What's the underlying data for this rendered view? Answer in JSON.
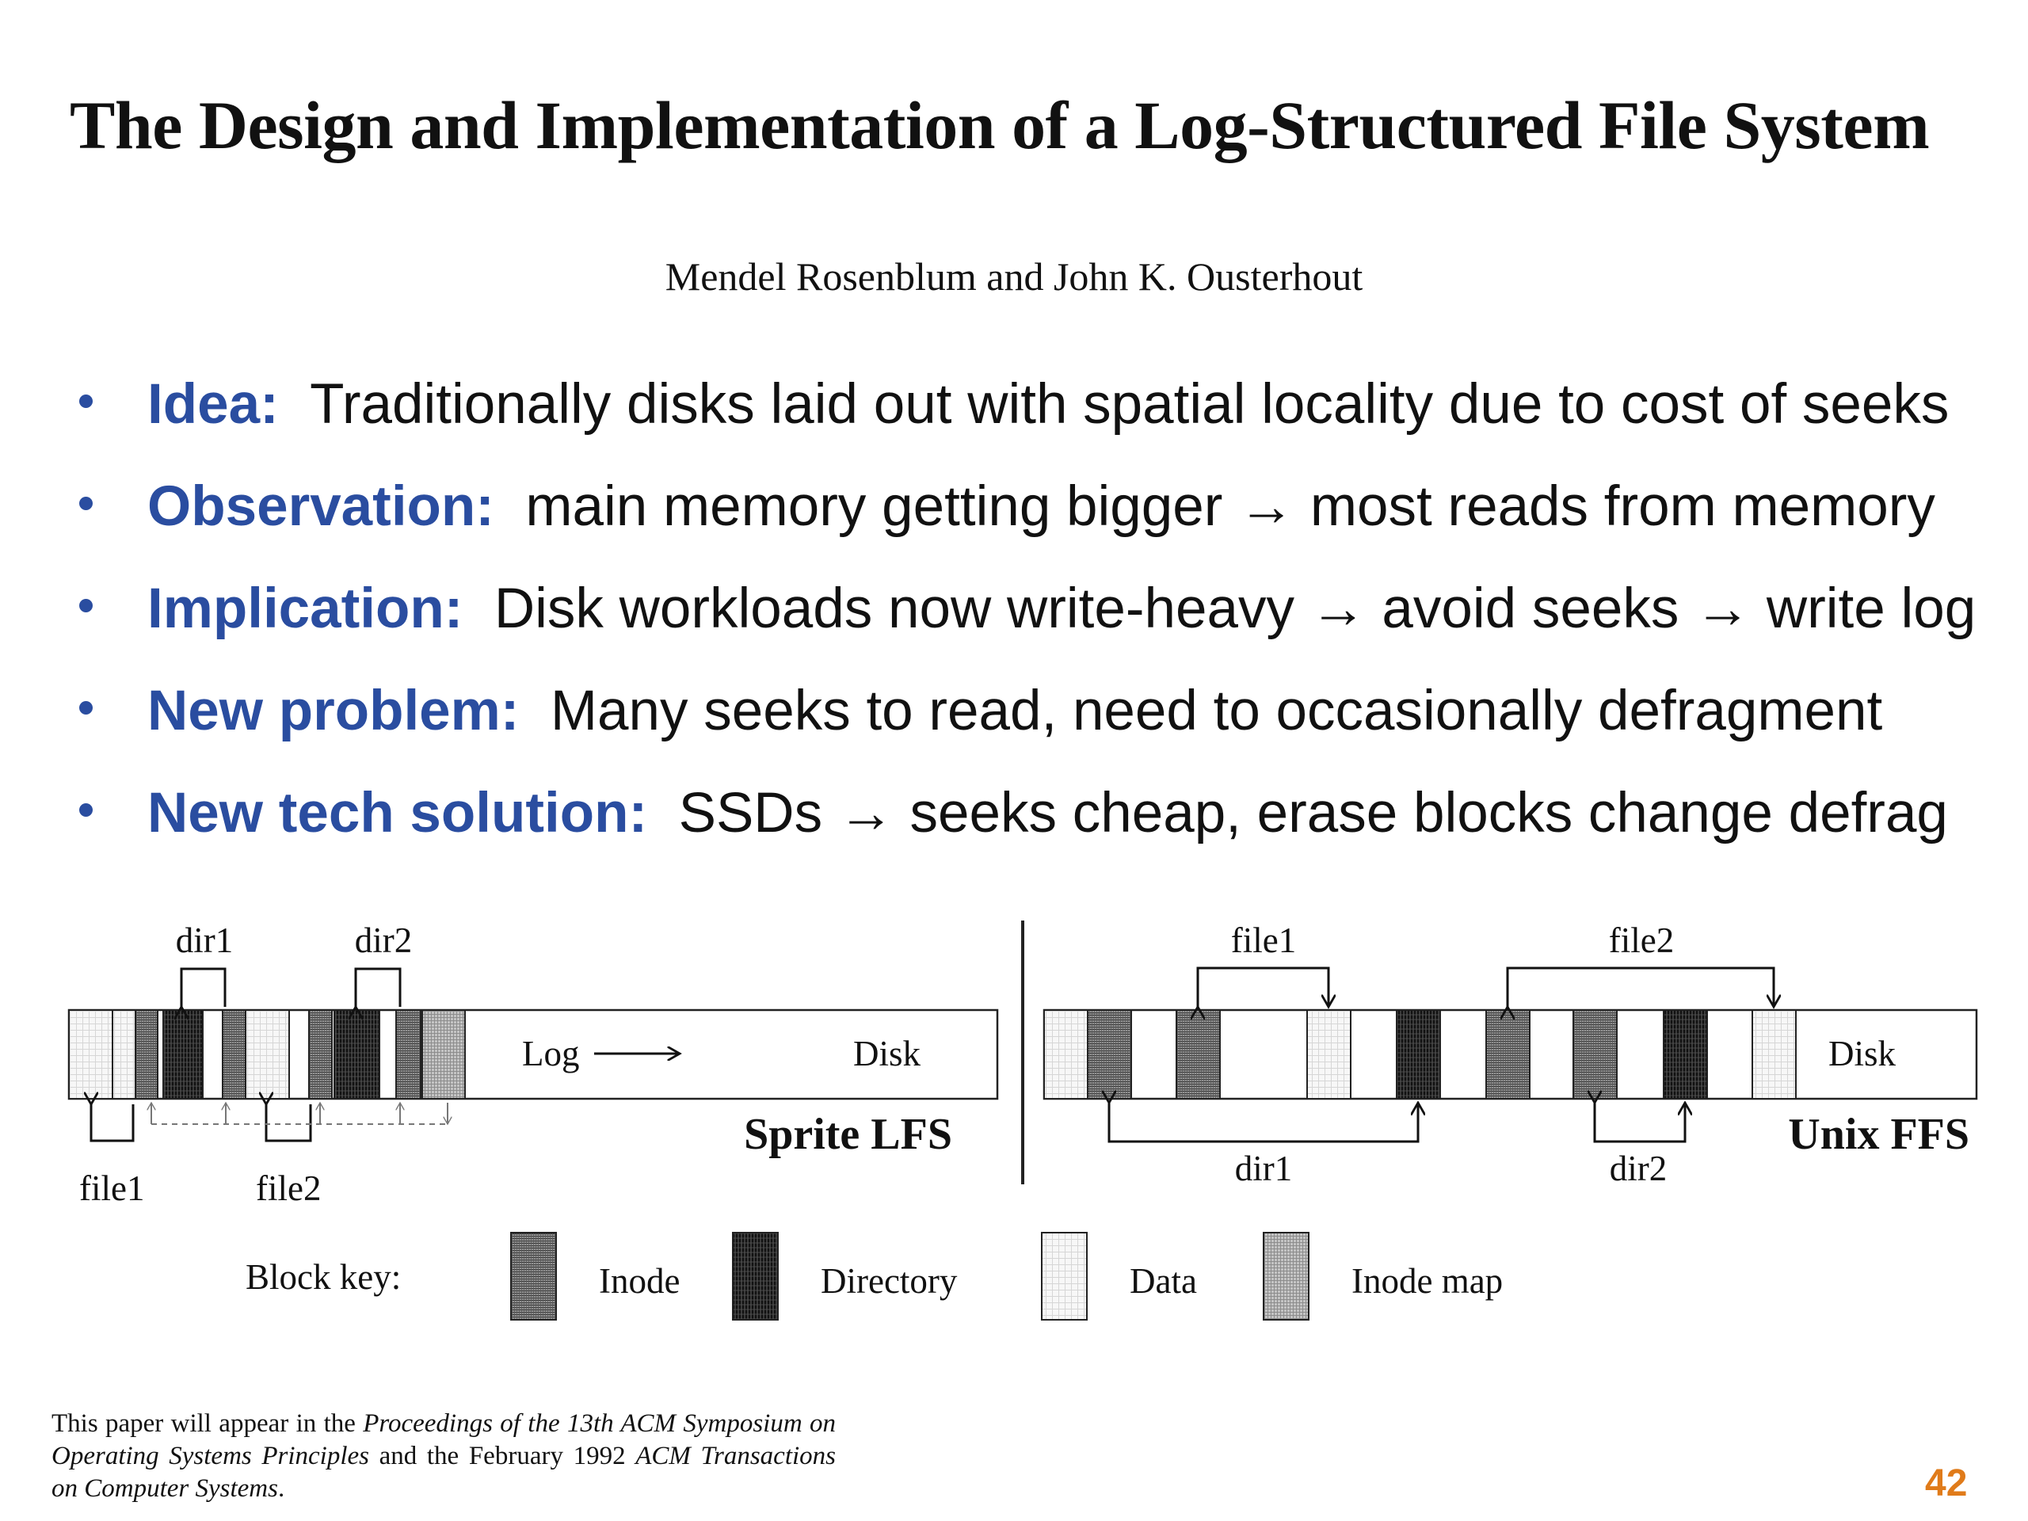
{
  "slide": {
    "title": "The Design and Implementation of a Log-Structured File System",
    "authors": "Mendel Rosenblum and John K. Ousterhout",
    "page_number": "42"
  },
  "bullets": [
    {
      "label": "Idea:",
      "text": "Traditionally disks laid out with spatial locality due to cost of seeks"
    },
    {
      "label": "Observation:",
      "text": "main memory getting bigger → most reads from memory"
    },
    {
      "label": "Implication:",
      "text": "Disk workloads now write-heavy → avoid seeks → write log"
    },
    {
      "label": "New problem:",
      "text": "Many seeks to read, need to occasionally defragment"
    },
    {
      "label": "New tech solution:",
      "text": "SSDs → seeks cheap, erase blocks change defrag"
    }
  ],
  "figure": {
    "lfs": {
      "dir1": "dir1",
      "dir2": "dir2",
      "log": "Log",
      "disk": "Disk",
      "file1": "file1",
      "file2": "file2",
      "caption": "Sprite LFS"
    },
    "ffs": {
      "file1": "file1",
      "file2": "file2",
      "disk": "Disk",
      "dir1": "dir1",
      "dir2": "dir2",
      "caption": "Unix FFS"
    },
    "key": {
      "title": "Block key:",
      "inode": "Inode",
      "directory": "Directory",
      "data": "Data",
      "inode_map": "Inode map"
    }
  },
  "citation": {
    "part1": "This paper will appear in the ",
    "part2": "Proceedings of the 13th ACM Symposium on Operating Systems Principles",
    "part3": " and the February 1992 ",
    "part4": "ACM Transactions on Computer Systems",
    "part5": "."
  }
}
